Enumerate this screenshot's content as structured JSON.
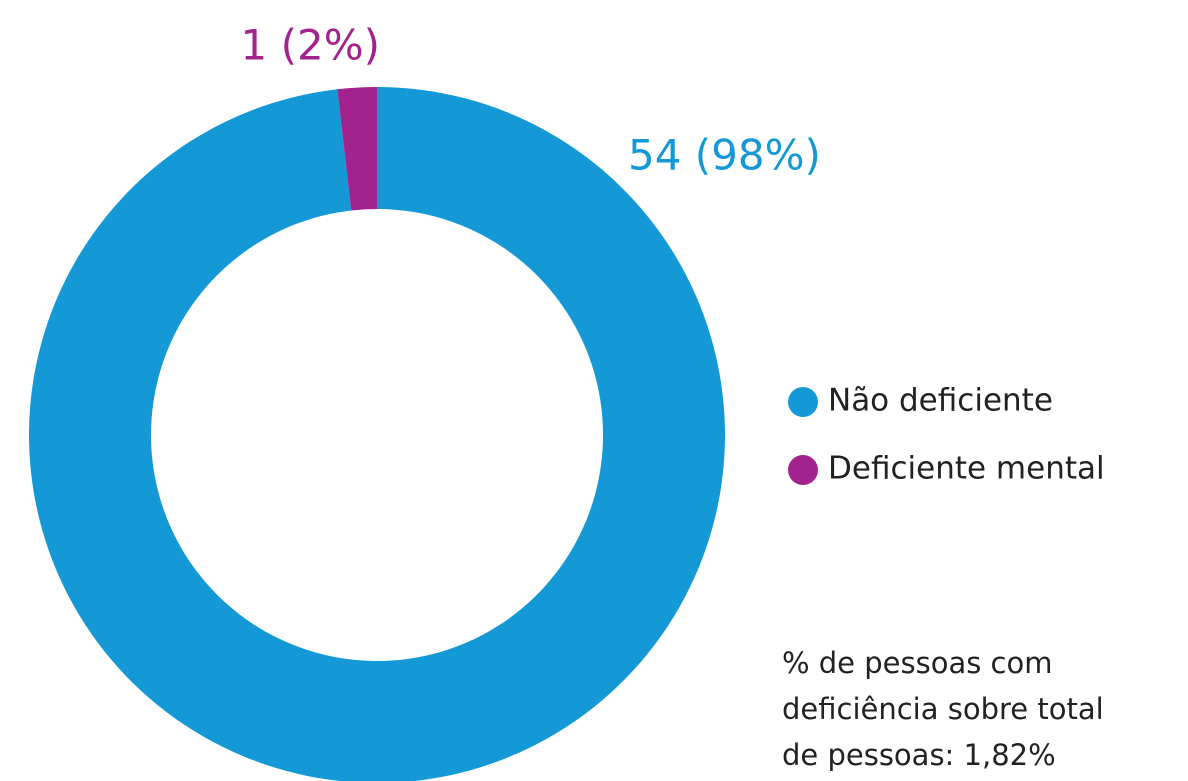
{
  "chart_data": {
    "type": "donut",
    "categories": [
      "Não deficiente",
      "Deficiente mental"
    ],
    "values": [
      54,
      1
    ],
    "value_labels": [
      "54 (98%)",
      "1 (2%)"
    ],
    "colors": [
      "#1499d6",
      "#a3238e"
    ],
    "legend": "right",
    "annotation": [
      "% de pessoas com",
      "deficiência sobre total",
      "de pessoas: 1,82%"
    ]
  }
}
